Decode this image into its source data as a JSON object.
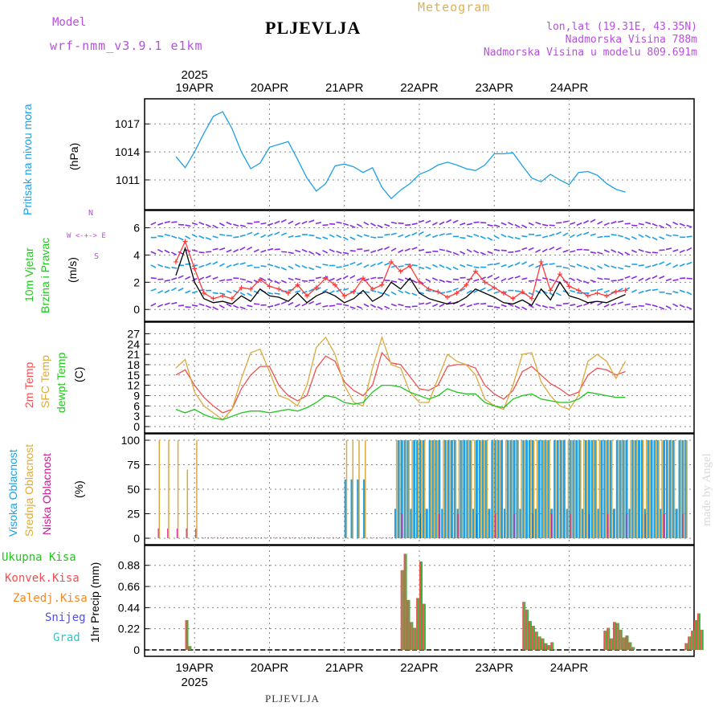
{
  "header": {
    "model_label": "Model",
    "model_name": "wrf-nmm_v3.9.1 e1km",
    "station": "PLJEVLJA",
    "product": "Meteogram",
    "coords": "lon,lat (19.31E, 43.35N)",
    "elevation": "Nadmorska Visina 788m",
    "model_elevation": "Nadmorska Visina u modelu 809.691m"
  },
  "axis_dates": {
    "year": "2025",
    "days": [
      "19APR",
      "20APR",
      "21APR",
      "22APR",
      "23APR",
      "24APR"
    ]
  },
  "footer_station": "PLJEVLJA",
  "credit": "made by Angel",
  "colors": {
    "pressure": "#1ea0e6",
    "wind_label": "#22c51e",
    "wind_speed_line": "#000000",
    "gust": "#ff3a3a",
    "t2m": "#f05050",
    "sfc": "#dcaa3c",
    "dewpt": "#22c51e",
    "cloud_high": "#1ea0e6",
    "cloud_mid": "#dcaa3c",
    "cloud_low": "#c81e96",
    "precip_total": "#3cb43c",
    "precip_conv": "#f05050",
    "precip_strat": "#f08a28",
    "snow": "#5050e6",
    "hail": "#28c8c8"
  },
  "chart_data": [
    {
      "type": "line",
      "panel": "pressure",
      "ylabel": "Pritisak na nivou mora",
      "unit": "(hPa)",
      "ylim": [
        1008.5,
        1019.0
      ],
      "yticks": [
        1011,
        1014,
        1017
      ],
      "x_hours": [
        0,
        3,
        6,
        9,
        12,
        15,
        18,
        21,
        24,
        27,
        30,
        33,
        36,
        39,
        42,
        45,
        48,
        51,
        54,
        57,
        60,
        63,
        66,
        69,
        72,
        75,
        78,
        81,
        84,
        87,
        90,
        93,
        96,
        99,
        102,
        105,
        108,
        111,
        114,
        117,
        120,
        123,
        126,
        129,
        132,
        135,
        138,
        141,
        144
      ],
      "values": [
        1013.5,
        1012.3,
        1014.0,
        1016.0,
        1017.8,
        1018.3,
        1016.5,
        1014.0,
        1012.2,
        1012.8,
        1014.5,
        1014.8,
        1015.1,
        1013.2,
        1011.2,
        1009.8,
        1010.6,
        1012.5,
        1012.7,
        1012.4,
        1011.8,
        1012.3,
        1010.2,
        1009.0,
        1009.9,
        1010.6,
        1011.6,
        1012.0,
        1012.6,
        1012.9,
        1012.6,
        1012.2,
        1012.0,
        1012.6,
        1013.8,
        1013.8,
        1013.9,
        1012.5,
        1011.2,
        1010.8,
        1011.6,
        1011.0,
        1010.5,
        1011.8,
        1011.9,
        1011.5,
        1010.6,
        1010.0,
        1009.7
      ]
    },
    {
      "type": "line",
      "panel": "wind",
      "ylabel": [
        "10m Vjetar",
        "Brzina i Pravac"
      ],
      "unit": "(m/s)",
      "direction_legend": [
        "N",
        "W <-+-> E",
        "S"
      ],
      "ylim": [
        -0.4,
        6.8
      ],
      "yticks": [
        0,
        2,
        4,
        6
      ],
      "x_hours": [
        0,
        3,
        6,
        9,
        12,
        15,
        18,
        21,
        24,
        27,
        30,
        33,
        36,
        39,
        42,
        45,
        48,
        51,
        54,
        57,
        60,
        63,
        66,
        69,
        72,
        75,
        78,
        81,
        84,
        87,
        90,
        93,
        96,
        99,
        102,
        105,
        108,
        111,
        114,
        117,
        120,
        123,
        126,
        129,
        132,
        135,
        138,
        141,
        144
      ],
      "speed": [
        2.5,
        4.5,
        2.0,
        0.8,
        0.5,
        0.6,
        0.4,
        1.0,
        0.6,
        1.5,
        1.0,
        0.9,
        0.6,
        1.2,
        0.5,
        1.0,
        1.3,
        1.0,
        0.5,
        0.8,
        1.4,
        0.6,
        1.0,
        2.0,
        1.5,
        2.3,
        1.2,
        0.8,
        0.6,
        0.4,
        0.5,
        0.9,
        1.5,
        1.2,
        0.9,
        0.5,
        0.4,
        0.7,
        0.3,
        1.5,
        0.7,
        2.0,
        1.0,
        0.8,
        0.5,
        0.6,
        0.5,
        0.8,
        1.1
      ],
      "gust": [
        3.5,
        5.0,
        3.0,
        1.2,
        0.8,
        1.0,
        0.8,
        1.6,
        1.5,
        2.2,
        1.7,
        1.5,
        1.2,
        1.8,
        1.0,
        1.6,
        2.3,
        1.8,
        1.0,
        1.3,
        2.3,
        1.5,
        1.8,
        3.5,
        2.8,
        3.2,
        2.0,
        1.5,
        1.3,
        0.9,
        1.2,
        1.8,
        2.8,
        2.0,
        1.6,
        1.2,
        0.8,
        1.3,
        0.8,
        3.5,
        1.4,
        2.6,
        1.7,
        1.4,
        1.0,
        1.2,
        1.0,
        1.3,
        1.4
      ]
    },
    {
      "type": "line",
      "panel": "temperature",
      "ylabel": [
        "2m Temp",
        "SFC Temp",
        "dewpt Temp"
      ],
      "unit": "(C)",
      "ylim": [
        0,
        28.5
      ],
      "yticks": [
        0,
        3,
        6,
        9,
        12,
        15,
        18,
        21,
        24,
        27
      ],
      "x_hours": [
        0,
        3,
        6,
        9,
        12,
        15,
        18,
        21,
        24,
        27,
        30,
        33,
        36,
        39,
        42,
        45,
        48,
        51,
        54,
        57,
        60,
        63,
        66,
        69,
        72,
        75,
        78,
        81,
        84,
        87,
        90,
        93,
        96,
        99,
        102,
        105,
        108,
        111,
        114,
        117,
        120,
        123,
        126,
        129,
        132,
        135,
        138,
        141,
        144
      ],
      "series": [
        {
          "key": "t2m",
          "values": [
            15,
            16.5,
            12,
            8.5,
            6,
            4,
            5,
            11,
            15,
            17.5,
            17.5,
            12,
            9,
            7.5,
            9,
            17,
            20.5,
            19,
            13,
            10.5,
            9,
            12,
            21.5,
            18.5,
            18,
            14.5,
            11,
            10.5,
            12,
            17.5,
            18,
            18,
            17,
            12,
            9.5,
            8,
            10.5,
            16,
            17.5,
            15,
            12.5,
            11,
            9,
            10,
            15,
            17,
            16.5,
            15,
            16
          ]
        },
        {
          "key": "sfc",
          "values": [
            17,
            19.5,
            10,
            6,
            4,
            2,
            5,
            14,
            21.5,
            22.5,
            16,
            9,
            8,
            6,
            12,
            23,
            26,
            21,
            12,
            7,
            6,
            17,
            26,
            18,
            17,
            10,
            7,
            7,
            14,
            21,
            19,
            18,
            15,
            8,
            6,
            5,
            12,
            21,
            21.5,
            13,
            9,
            6,
            5,
            9,
            19,
            21,
            19,
            14,
            19
          ]
        },
        {
          "key": "dewpt",
          "values": [
            5,
            4,
            5,
            3.5,
            2.5,
            2,
            3,
            4,
            4.5,
            4.5,
            4,
            4.5,
            5,
            4.5,
            5.5,
            7,
            9,
            8.5,
            7,
            6.5,
            7,
            10,
            12,
            12,
            11.5,
            10,
            9,
            8,
            9,
            11,
            10,
            9.5,
            9.5,
            7,
            6,
            5.5,
            8,
            9,
            9.5,
            8,
            7.5,
            7,
            7,
            8,
            10,
            9.5,
            9,
            8.5,
            8.5
          ]
        }
      ]
    },
    {
      "type": "bar",
      "panel": "clouds",
      "ylabel": [
        "Visoka Oblacnost",
        "Srednja Oblacnost",
        "Niska Oblacnost"
      ],
      "unit": "(%)",
      "ylim": [
        0,
        100
      ],
      "yticks": [
        0,
        25,
        50,
        75,
        100
      ],
      "note": "hourly cloud cover; values vary between 0 and 100 %"
    },
    {
      "type": "bar",
      "panel": "precipitation",
      "ylabel": "1hr Precip (mm)",
      "legend": [
        "Ukupna Kisa",
        "Konvek.Kisa",
        "Zaledj.Kisa",
        "Snijeg",
        "Grad"
      ],
      "ylim": [
        0,
        1.02
      ],
      "yticks": [
        0,
        0.22,
        0.44,
        0.66,
        0.88
      ],
      "x_hours": [
        3,
        4,
        72,
        73,
        74,
        75,
        76,
        77,
        78,
        79,
        80,
        81,
        82,
        83,
        84,
        85,
        86,
        111,
        112,
        113,
        114,
        115,
        116,
        117,
        118,
        119,
        120,
        121,
        122,
        137,
        138,
        139,
        140,
        141,
        142,
        143,
        144,
        145,
        146,
        147,
        148,
        149,
        150,
        163,
        164,
        165,
        166,
        167,
        168
      ],
      "values": [
        0.31,
        0.04,
        0.83,
        1.0,
        0.52,
        0.29,
        0.23,
        0.54,
        0.92,
        0.48,
        0.0,
        0.0,
        0.0,
        0.0,
        0.0,
        0.0,
        0.0,
        0.5,
        0.42,
        0.3,
        0.25,
        0.19,
        0.14,
        0.12,
        0.07,
        0.05,
        0.08,
        0.0,
        0.0,
        0.2,
        0.23,
        0.12,
        0.29,
        0.28,
        0.21,
        0.13,
        0.15,
        0.08,
        0.03,
        0.0,
        0.0,
        0.0,
        0.0,
        0.07,
        0.14,
        0.2,
        0.31,
        0.38,
        0.21
      ]
    }
  ]
}
